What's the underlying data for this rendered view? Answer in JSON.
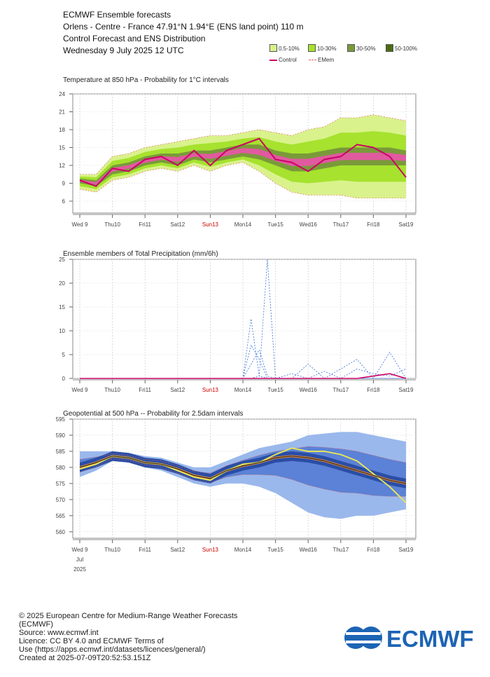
{
  "header": {
    "line1": "ECMWF Ensemble forecasts",
    "line2": "Orlеns - Centre - France 47.91°N 1.94°E (ENS land point) 110 m",
    "line3": "Control Forecast and ENS Distribution",
    "line4": "Wednesday 9 July 2025 12 UTC"
  },
  "legend": {
    "bins": [
      {
        "label": "0.5-10%",
        "color": "#d9f28c"
      },
      {
        "label": "10-30%",
        "color": "#a6e22e"
      },
      {
        "label": "30-50%",
        "color": "#7a9a3a"
      },
      {
        "label": "50-100%",
        "color": "#4d6b12"
      }
    ],
    "control_label": "Control",
    "control_color": "#cc0066",
    "emem_label": "EMem",
    "emem_color": "#e06060"
  },
  "x_labels": [
    "Wed 9",
    "Thu10",
    "Fri11",
    "Sat12",
    "Sun13",
    "Mon14",
    "Tue15",
    "Wed16",
    "Thu17",
    "Fri18",
    "Sat19"
  ],
  "x_label_colors": [
    "#444",
    "#444",
    "#444",
    "#444",
    "#cc0000",
    "#444",
    "#444",
    "#444",
    "#444",
    "#444",
    "#444"
  ],
  "x_sub_month": "Jul",
  "x_sub_year": "2025",
  "chart_data": [
    {
      "type": "area",
      "title": "Temperature at 850 hPa - Probability for 1°C intervals",
      "ylim": [
        4,
        24
      ],
      "yticks": [
        6,
        9,
        12,
        15,
        18,
        21,
        24
      ],
      "x": [
        0,
        0.5,
        1,
        1.5,
        2,
        2.5,
        3,
        3.5,
        4,
        4.5,
        5,
        5.5,
        6,
        6.5,
        7,
        7.5,
        8,
        8.5,
        9,
        9.5,
        10
      ],
      "control": [
        9.5,
        8.5,
        11.5,
        11,
        13,
        13.5,
        12,
        14.5,
        12,
        14.5,
        15.5,
        16.5,
        13,
        12.5,
        11,
        13,
        13.5,
        15.5,
        15,
        13.5,
        10
      ],
      "spread_low": [
        8,
        7.5,
        9.5,
        10,
        11,
        11.5,
        11,
        12,
        11,
        12,
        12.5,
        11,
        9,
        7.5,
        7,
        7,
        7,
        6.5,
        6.5,
        6.5,
        6.5
      ],
      "spread_high": [
        10.5,
        10.5,
        13.5,
        14,
        15,
        15.5,
        16,
        16.5,
        17,
        17,
        17.5,
        18,
        17.5,
        17,
        18,
        18.5,
        20,
        20,
        20.5,
        20,
        19.5
      ],
      "core_low": [
        9,
        8.5,
        10.5,
        11,
        12,
        12.5,
        12,
        13,
        12.5,
        13,
        13.5,
        13,
        12,
        11,
        11,
        11.5,
        12,
        12,
        12,
        12,
        12
      ],
      "core_high": [
        9.8,
        9.5,
        12,
        12.5,
        13.5,
        14,
        14,
        14.5,
        14.5,
        15,
        15.5,
        15.5,
        14.5,
        14,
        14,
        14.5,
        15,
        15,
        15,
        15,
        14.5
      ]
    },
    {
      "type": "line",
      "title": "Ensemble members of Total Precipitation (mm/6h)",
      "ylim": [
        0,
        25
      ],
      "yticks": [
        0,
        5,
        10,
        15,
        20,
        25
      ],
      "x": [
        0,
        0.5,
        1,
        1.5,
        2,
        2.5,
        3,
        3.5,
        4,
        4.5,
        5,
        5.25,
        5.5,
        5.75,
        6,
        6.5,
        7,
        7.5,
        8,
        8.5,
        9,
        9.5,
        10
      ],
      "series": [
        {
          "values": [
            0,
            0,
            0,
            0,
            0,
            0,
            0,
            0,
            0,
            0,
            0,
            12.5,
            0.5,
            0,
            0,
            0,
            0,
            0,
            0,
            0,
            0,
            0,
            0
          ]
        },
        {
          "values": [
            0,
            0,
            0,
            0,
            0,
            0,
            0,
            0,
            0,
            0,
            0,
            0,
            0.5,
            25,
            0,
            0,
            0,
            0,
            0,
            0,
            0,
            0,
            0
          ]
        },
        {
          "values": [
            0,
            0,
            0,
            0,
            0,
            0,
            0,
            0,
            0,
            0,
            0,
            7,
            4,
            0,
            0,
            0,
            3,
            0,
            2,
            4,
            0,
            5.5,
            0
          ]
        },
        {
          "values": [
            0,
            0,
            0,
            0,
            0,
            0,
            0,
            0,
            0,
            0,
            0,
            3,
            6,
            0.5,
            0,
            1,
            0,
            1.5,
            0,
            2,
            1,
            0.5,
            2
          ]
        }
      ],
      "control": [
        0,
        0,
        0,
        0,
        0,
        0,
        0,
        0,
        0,
        0,
        0,
        0,
        0,
        0,
        0,
        0,
        0,
        0,
        0,
        0,
        0.5,
        1,
        0
      ]
    },
    {
      "type": "area",
      "title": "Geopotential at 500 hPa -- Probability for 2.5dam intervals",
      "ylim": [
        558,
        595
      ],
      "yticks": [
        560,
        565,
        570,
        575,
        580,
        585,
        590,
        595
      ],
      "x": [
        0,
        0.5,
        1,
        1.5,
        2,
        2.5,
        3,
        3.5,
        4,
        4.5,
        5,
        5.5,
        6,
        6.5,
        7,
        7.5,
        8,
        8.5,
        9,
        9.5,
        10
      ],
      "control": [
        579.5,
        581,
        583.5,
        583,
        581.5,
        581,
        579,
        577,
        576,
        579,
        581,
        581.5,
        584,
        586,
        585,
        585,
        584,
        582,
        578,
        574,
        569
      ],
      "spread_low": [
        577,
        579,
        582,
        581.5,
        580,
        579,
        577,
        575,
        574,
        575,
        575,
        574,
        572,
        569,
        566,
        564.5,
        564,
        565,
        565,
        566,
        567
      ],
      "spread_high": [
        585,
        585,
        585,
        584.5,
        583.5,
        583,
        581.5,
        580,
        580,
        582,
        584,
        586,
        587,
        588,
        590,
        590.5,
        591,
        591,
        590,
        589,
        588
      ],
      "mean": [
        580,
        581.5,
        583.5,
        583,
        581.5,
        581,
        579.5,
        577.5,
        576.5,
        579,
        580.5,
        581.5,
        583,
        583.5,
        583,
        582,
        580.5,
        579,
        577.5,
        576,
        575
      ]
    }
  ],
  "footer": {
    "line1": "© 2025 European Centre for Medium-Range Weather Forecasts",
    "line2": "(ECMWF)",
    "line3": "Source: www.ecmwf.int",
    "line4": "Licence: CC BY 4.0 and ECMWF Terms of",
    "line5": "Use (https://apps.ecmwf.int/datasets/licences/general/)",
    "line6": "Created at 2025-07-09T20:52:53.151Z"
  },
  "logo": {
    "text": "ECMWF",
    "color": "#1c64b4"
  }
}
